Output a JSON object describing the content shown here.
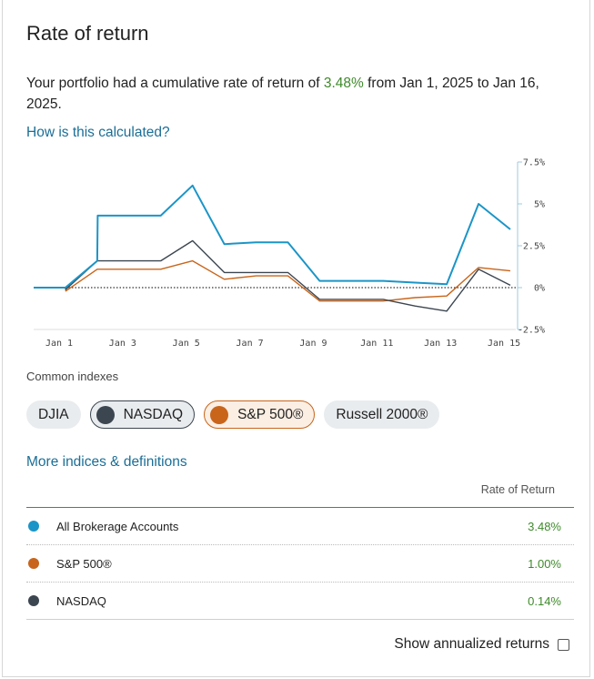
{
  "header": {
    "title": "Rate of return"
  },
  "summary": {
    "prefix": "Your portfolio had a cumulative rate of return of ",
    "rate": "3.48%",
    "suffix": " from Jan 1, 2025 to Jan 16, 2025."
  },
  "how_link": "How is this calculated?",
  "chart_data": {
    "type": "line",
    "x": [
      "Jan 1",
      "Jan 2",
      "Jan 3",
      "Jan 4",
      "Jan 5",
      "Jan 6",
      "Jan 7",
      "Jan 8",
      "Jan 9",
      "Jan 10",
      "Jan 11",
      "Jan 12",
      "Jan 13",
      "Jan 14",
      "Jan 15",
      "Jan 16"
    ],
    "xticks": [
      "Jan 1",
      "Jan 3",
      "Jan 5",
      "Jan 7",
      "Jan 9",
      "Jan 11",
      "Jan 13",
      "Jan 15"
    ],
    "ylim": [
      -2.5,
      7.5
    ],
    "yticks": [
      "7.5%",
      "5%",
      "2.5%",
      "0%",
      "-2.5%"
    ],
    "series": [
      {
        "name": "All Brokerage Accounts",
        "color": "#1b95c7",
        "points": [
          [
            "Jan 1",
            0
          ],
          [
            "Jan 2",
            0
          ],
          [
            "Jan 3",
            1.6
          ],
          [
            "Jan 3",
            4.3
          ],
          [
            "Jan 4",
            4.3
          ],
          [
            "Jan 5",
            4.3
          ],
          [
            "Jan 6",
            6.1
          ],
          [
            "Jan 7",
            2.6
          ],
          [
            "Jan 8",
            2.7
          ],
          [
            "Jan 9",
            2.7
          ],
          [
            "Jan 10",
            0.4
          ],
          [
            "Jan 11",
            0.4
          ],
          [
            "Jan 12",
            0.4
          ],
          [
            "Jan 13",
            0.3
          ],
          [
            "Jan 14",
            0.2
          ],
          [
            "Jan 15",
            5.0
          ],
          [
            "Jan 16",
            3.48
          ]
        ]
      },
      {
        "name": "NASDAQ",
        "color": "#3c4650",
        "points": [
          [
            "Jan 1",
            0
          ],
          [
            "Jan 2",
            0
          ],
          [
            "Jan 2",
            -0.1
          ],
          [
            "Jan 3",
            1.6
          ],
          [
            "Jan 4",
            1.6
          ],
          [
            "Jan 5",
            1.6
          ],
          [
            "Jan 6",
            2.8
          ],
          [
            "Jan 7",
            0.9
          ],
          [
            "Jan 8",
            0.9
          ],
          [
            "Jan 9",
            0.9
          ],
          [
            "Jan 10",
            -0.7
          ],
          [
            "Jan 11",
            -0.7
          ],
          [
            "Jan 12",
            -0.7
          ],
          [
            "Jan 13",
            -1.1
          ],
          [
            "Jan 14",
            -1.4
          ],
          [
            "Jan 15",
            1.1
          ],
          [
            "Jan 16",
            0.14
          ]
        ]
      },
      {
        "name": "S&P 500®",
        "color": "#c8651b",
        "points": [
          [
            "Jan 1",
            0
          ],
          [
            "Jan 2",
            0
          ],
          [
            "Jan 2",
            -0.2
          ],
          [
            "Jan 3",
            1.1
          ],
          [
            "Jan 4",
            1.1
          ],
          [
            "Jan 5",
            1.1
          ],
          [
            "Jan 6",
            1.6
          ],
          [
            "Jan 7",
            0.5
          ],
          [
            "Jan 8",
            0.7
          ],
          [
            "Jan 9",
            0.7
          ],
          [
            "Jan 10",
            -0.8
          ],
          [
            "Jan 11",
            -0.8
          ],
          [
            "Jan 12",
            -0.8
          ],
          [
            "Jan 13",
            -0.6
          ],
          [
            "Jan 14",
            -0.5
          ],
          [
            "Jan 15",
            1.2
          ],
          [
            "Jan 16",
            1.0
          ]
        ]
      }
    ]
  },
  "indexes": {
    "label": "Common indexes",
    "pills": [
      {
        "label": "DJIA",
        "selected": false
      },
      {
        "label": "NASDAQ",
        "selected": true,
        "color": "#3c4650"
      },
      {
        "label": "S&P 500®",
        "selected": true,
        "color": "#c8651b"
      },
      {
        "label": "Russell 2000®",
        "selected": false
      }
    ]
  },
  "more_link": "More indices & definitions",
  "table": {
    "header": "Rate of Return",
    "rows": [
      {
        "name": "All Brokerage Accounts",
        "value": "3.48%",
        "color": "#1b95c7"
      },
      {
        "name": "S&P 500®",
        "value": "1.00%",
        "color": "#c8651b"
      },
      {
        "name": "NASDAQ",
        "value": "0.14%",
        "color": "#3c4650"
      }
    ]
  },
  "annualized": {
    "label": "Show annualized returns",
    "checked": false
  }
}
